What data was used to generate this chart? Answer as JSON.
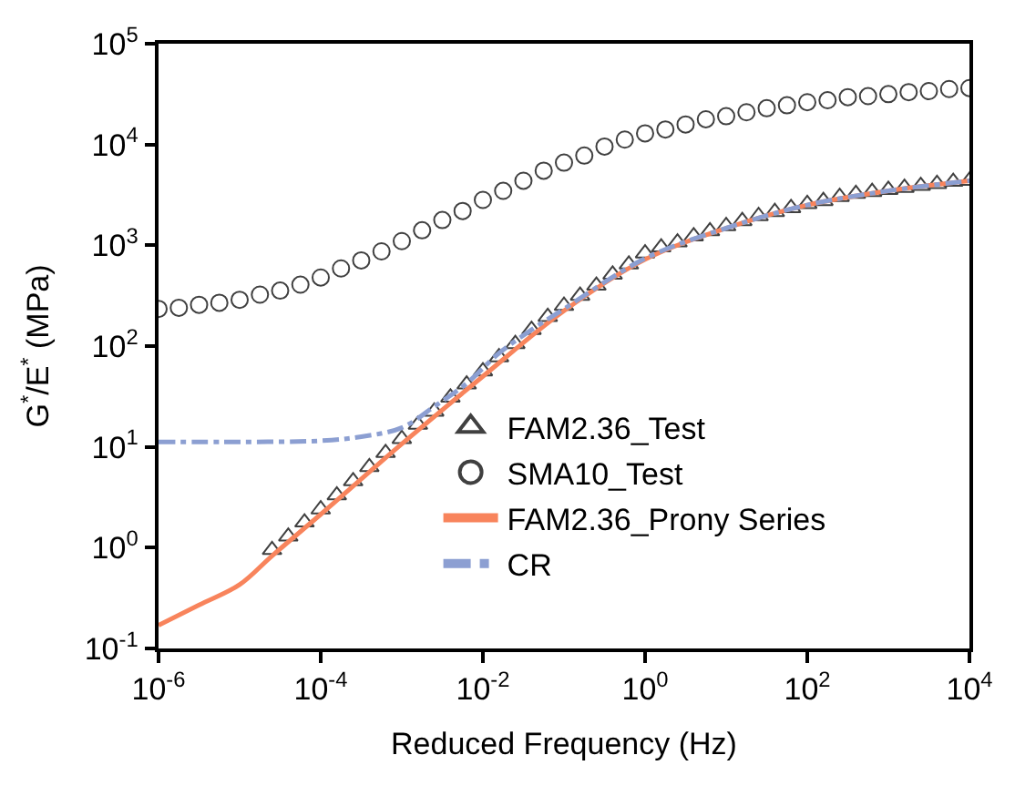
{
  "chart_data": {
    "type": "scatter",
    "xlabel": "Reduced Frequency (Hz)",
    "ylabel": "G$^{*}$/E$^{*}$ (MPa)",
    "log": "xy",
    "xlim": [
      1e-06,
      10000
    ],
    "ylim": [
      0.1,
      100000
    ],
    "xticks": [
      {
        "value": 1e-06,
        "label": "10$^{-6}$"
      },
      {
        "value": 0.0001,
        "label": "10$^{-4}$"
      },
      {
        "value": 0.01,
        "label": "10$^{-2}$"
      },
      {
        "value": 1,
        "label": "10$^{0}$"
      },
      {
        "value": 100,
        "label": "10$^{2}$"
      },
      {
        "value": 10000,
        "label": "10$^{4}$"
      }
    ],
    "yticks": [
      {
        "value": 0.1,
        "label": "10$^{-1}$"
      },
      {
        "value": 1,
        "label": "10$^{0}$"
      },
      {
        "value": 10,
        "label": "10$^{1}$"
      },
      {
        "value": 100,
        "label": "10$^{2}$"
      },
      {
        "value": 1000,
        "label": "10$^{3}$"
      },
      {
        "value": 10000,
        "label": "10$^{4}$"
      },
      {
        "value": 100000,
        "label": "10$^{5}$"
      }
    ],
    "legend": "center right",
    "series": [
      {
        "name": "FAM2.36_Test",
        "marker": "triangle",
        "color": "#404040",
        "x": [
          2.51e-05,
          3.98e-05,
          6.31e-05,
          0.0001,
          0.000158,
          0.000251,
          0.000398,
          0.000631,
          0.001,
          0.00158,
          0.00251,
          0.00398,
          0.00631,
          0.01,
          0.0158,
          0.0251,
          0.0398,
          0.0631,
          0.1,
          0.158,
          0.251,
          0.398,
          0.631,
          1,
          1.58,
          2.51,
          3.98,
          6.31,
          10,
          15.8,
          25.1,
          39.8,
          63.1,
          100,
          158,
          251,
          398,
          631,
          1000,
          1580,
          2510,
          3980,
          6310,
          10000
        ],
        "values": [
          0.95,
          1.29,
          1.78,
          2.4,
          3.31,
          4.57,
          6.31,
          8.71,
          12.0,
          16.6,
          22.4,
          30.9,
          41.7,
          56.2,
          77.6,
          105,
          145,
          195,
          251,
          316,
          398,
          513,
          646,
          832,
          955,
          1070,
          1230,
          1380,
          1550,
          1740,
          1950,
          2140,
          2340,
          2570,
          2750,
          3020,
          3240,
          3390,
          3550,
          3720,
          3890,
          4070,
          4270,
          4370
        ]
      },
      {
        "name": "SMA10_Test",
        "marker": "circle",
        "color": "#404040",
        "x": [
          1e-06,
          1.78e-06,
          3.16e-06,
          5.62e-06,
          1e-05,
          1.78e-05,
          3.16e-05,
          5.62e-05,
          0.0001,
          0.000178,
          0.000316,
          0.000562,
          0.001,
          0.00178,
          0.00316,
          0.00562,
          0.01,
          0.0178,
          0.0316,
          0.0562,
          0.1,
          0.178,
          0.316,
          0.562,
          1,
          1.78,
          3.16,
          5.62,
          10,
          17.8,
          31.6,
          56.2,
          100,
          178,
          316,
          562,
          1000,
          1780,
          3160,
          5620,
          10000
        ],
        "values": [
          234,
          240,
          257,
          269,
          288,
          324,
          355,
          407,
          479,
          589,
          708,
          871,
          1100,
          1410,
          1780,
          2190,
          2820,
          3470,
          4370,
          5500,
          6610,
          7760,
          9550,
          11200,
          12900,
          14100,
          15800,
          17800,
          19100,
          20900,
          22900,
          24500,
          26300,
          27500,
          29500,
          30200,
          31600,
          33100,
          33900,
          35500,
          36300
        ]
      },
      {
        "name": "FAM2.36_Prony Series",
        "type": "line",
        "line_style": "solid",
        "color": "#f8845c",
        "x": [
          1e-06,
          3.16e-06,
          1e-05,
          2.51e-05,
          0.0001,
          0.001,
          0.01,
          0.1,
          1,
          10,
          100,
          1000,
          10000
        ],
        "values": [
          0.17,
          0.27,
          0.43,
          0.83,
          2.14,
          10.7,
          50.1,
          224,
          724,
          1480,
          2510,
          3470,
          4370
        ]
      },
      {
        "name": "CR",
        "type": "line",
        "line_style": "dashdot",
        "color": "#8c9fd2",
        "x": [
          1e-06,
          1e-05,
          0.0001,
          0.000316,
          0.001,
          0.00251,
          0.00631,
          0.0158,
          0.0398,
          0.1,
          1,
          10,
          100,
          1000,
          10000
        ],
        "values": [
          11.2,
          11.2,
          11.5,
          12.6,
          15.5,
          25.1,
          42.7,
          85.1,
          145,
          234,
          741,
          1480,
          2510,
          3470,
          4370
        ]
      }
    ]
  }
}
